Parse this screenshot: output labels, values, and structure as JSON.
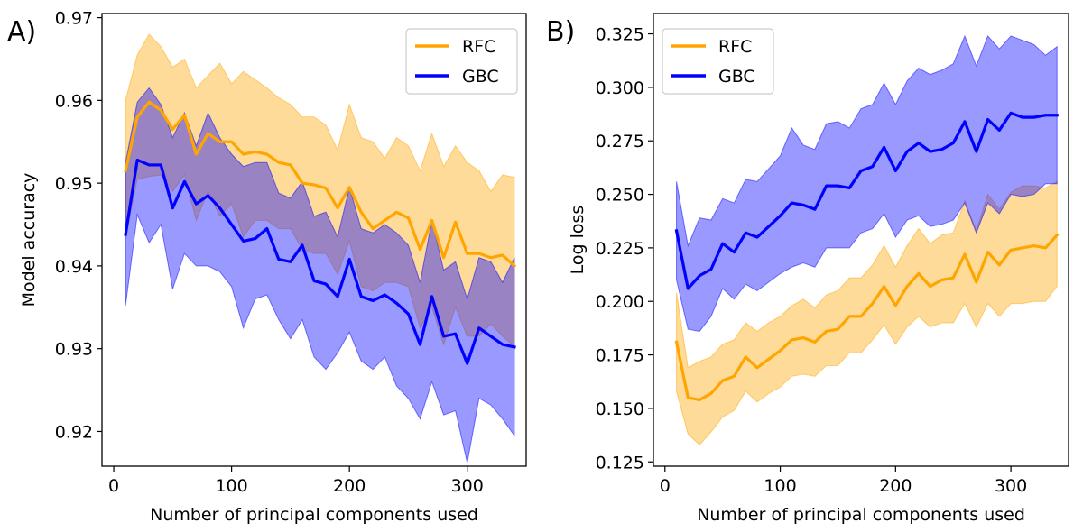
{
  "chart_data": [
    {
      "type": "line",
      "panel_label": "A)",
      "xlabel": "Number of principal components used",
      "ylabel": "Model accuracy",
      "xlim": [
        -10,
        350
      ],
      "ylim": [
        0.9158,
        0.9705
      ],
      "xticks": [
        0,
        100,
        200,
        300
      ],
      "yticks": [
        0.92,
        0.93,
        0.94,
        0.95,
        0.96,
        0.97
      ],
      "ytick_labels": [
        "0.92",
        "0.93",
        "0.94",
        "0.95",
        "0.96",
        "0.97"
      ],
      "grid": false,
      "legend_position": "top-right",
      "x": [
        10,
        20,
        30,
        40,
        50,
        60,
        70,
        80,
        90,
        100,
        110,
        120,
        130,
        140,
        150,
        160,
        170,
        180,
        190,
        200,
        210,
        220,
        230,
        240,
        250,
        260,
        270,
        280,
        290,
        300,
        310,
        320,
        330,
        340
      ],
      "series": [
        {
          "name": "RFC",
          "color": "#FFA500",
          "band_color": "#FFA500",
          "values": [
            0.9515,
            0.958,
            0.9598,
            0.9588,
            0.9565,
            0.9582,
            0.9535,
            0.956,
            0.955,
            0.955,
            0.9535,
            0.9538,
            0.9535,
            0.9525,
            0.9522,
            0.95,
            0.9498,
            0.9494,
            0.947,
            0.9495,
            0.9465,
            0.9445,
            0.9455,
            0.9465,
            0.9458,
            0.942,
            0.9455,
            0.941,
            0.9453,
            0.9415,
            0.9415,
            0.941,
            0.9413,
            0.94
          ],
          "upper": [
            0.96,
            0.9655,
            0.968,
            0.9665,
            0.964,
            0.965,
            0.9615,
            0.963,
            0.9645,
            0.962,
            0.9635,
            0.9625,
            0.9615,
            0.9603,
            0.9595,
            0.958,
            0.958,
            0.957,
            0.954,
            0.9595,
            0.9555,
            0.955,
            0.953,
            0.9555,
            0.9545,
            0.9515,
            0.956,
            0.952,
            0.9545,
            0.9525,
            0.9515,
            0.949,
            0.951,
            0.9507
          ],
          "lower": [
            0.9435,
            0.9505,
            0.9508,
            0.951,
            0.949,
            0.951,
            0.9455,
            0.949,
            0.946,
            0.9475,
            0.9435,
            0.9455,
            0.9455,
            0.9445,
            0.9445,
            0.942,
            0.9415,
            0.9415,
            0.939,
            0.943,
            0.9375,
            0.937,
            0.938,
            0.938,
            0.9375,
            0.9325,
            0.935,
            0.9305,
            0.935,
            0.9315,
            0.9315,
            0.933,
            0.9315,
            0.9303
          ]
        },
        {
          "name": "GBC",
          "color": "#0000FF",
          "band_color": "#0000FF",
          "values": [
            0.9438,
            0.9528,
            0.9522,
            0.9522,
            0.947,
            0.9502,
            0.9475,
            0.9485,
            0.947,
            0.945,
            0.943,
            0.9433,
            0.9445,
            0.9408,
            0.9405,
            0.9425,
            0.9382,
            0.9378,
            0.9363,
            0.9408,
            0.9363,
            0.9358,
            0.9365,
            0.9355,
            0.9342,
            0.9305,
            0.9363,
            0.9315,
            0.9318,
            0.9282,
            0.9325,
            0.9315,
            0.9305,
            0.9302
          ],
          "upper": [
            0.9525,
            0.9598,
            0.9615,
            0.9595,
            0.9555,
            0.9585,
            0.9545,
            0.9585,
            0.9555,
            0.9535,
            0.952,
            0.9525,
            0.9525,
            0.9488,
            0.9482,
            0.9502,
            0.946,
            0.9465,
            0.9435,
            0.9495,
            0.9445,
            0.944,
            0.945,
            0.944,
            0.9425,
            0.938,
            0.9455,
            0.9395,
            0.9405,
            0.936,
            0.941,
            0.9405,
            0.938,
            0.941
          ],
          "lower": [
            0.9352,
            0.9462,
            0.9428,
            0.945,
            0.9372,
            0.9415,
            0.94,
            0.94,
            0.9393,
            0.9375,
            0.9325,
            0.936,
            0.9365,
            0.9335,
            0.9312,
            0.9335,
            0.929,
            0.9275,
            0.9295,
            0.932,
            0.9285,
            0.9275,
            0.929,
            0.9255,
            0.924,
            0.9215,
            0.926,
            0.922,
            0.9225,
            0.9162,
            0.924,
            0.9232,
            0.9215,
            0.9195
          ]
        }
      ]
    },
    {
      "type": "line",
      "panel_label": "B)",
      "xlabel": "Number of principal components used",
      "ylabel": "Log loss",
      "xlim": [
        -10,
        350
      ],
      "ylim": [
        0.123,
        0.3345
      ],
      "xticks": [
        0,
        100,
        200,
        300
      ],
      "yticks": [
        0.125,
        0.15,
        0.175,
        0.2,
        0.225,
        0.25,
        0.275,
        0.3,
        0.325
      ],
      "ytick_labels": [
        "0.125",
        "0.150",
        "0.175",
        "0.200",
        "0.225",
        "0.250",
        "0.275",
        "0.300",
        "0.325"
      ],
      "grid": false,
      "legend_position": "top-left",
      "x": [
        10,
        20,
        30,
        40,
        50,
        60,
        70,
        80,
        90,
        100,
        110,
        120,
        130,
        140,
        150,
        160,
        170,
        180,
        190,
        200,
        210,
        220,
        230,
        240,
        250,
        260,
        270,
        280,
        290,
        300,
        310,
        320,
        330,
        340
      ],
      "series": [
        {
          "name": "RFC",
          "color": "#FFA500",
          "band_color": "#FFA500",
          "values": [
            0.181,
            0.155,
            0.154,
            0.157,
            0.163,
            0.165,
            0.174,
            0.169,
            0.173,
            0.177,
            0.182,
            0.183,
            0.181,
            0.186,
            0.187,
            0.193,
            0.193,
            0.199,
            0.207,
            0.198,
            0.207,
            0.213,
            0.207,
            0.21,
            0.211,
            0.222,
            0.209,
            0.223,
            0.217,
            0.224,
            0.225,
            0.226,
            0.225,
            0.231
          ],
          "upper": [
            0.204,
            0.169,
            0.172,
            0.174,
            0.18,
            0.182,
            0.19,
            0.186,
            0.19,
            0.193,
            0.198,
            0.201,
            0.197,
            0.203,
            0.205,
            0.211,
            0.211,
            0.217,
            0.226,
            0.216,
            0.226,
            0.234,
            0.227,
            0.231,
            0.232,
            0.247,
            0.233,
            0.25,
            0.243,
            0.251,
            0.254,
            0.254,
            0.253,
            0.256
          ],
          "lower": [
            0.158,
            0.138,
            0.133,
            0.139,
            0.146,
            0.149,
            0.158,
            0.153,
            0.157,
            0.16,
            0.165,
            0.166,
            0.165,
            0.17,
            0.17,
            0.176,
            0.176,
            0.182,
            0.189,
            0.18,
            0.188,
            0.193,
            0.188,
            0.19,
            0.19,
            0.199,
            0.188,
            0.199,
            0.193,
            0.199,
            0.199,
            0.2,
            0.2,
            0.207
          ]
        },
        {
          "name": "GBC",
          "color": "#0000FF",
          "band_color": "#0000FF",
          "values": [
            0.233,
            0.206,
            0.212,
            0.215,
            0.227,
            0.223,
            0.232,
            0.23,
            0.235,
            0.24,
            0.246,
            0.245,
            0.243,
            0.254,
            0.254,
            0.253,
            0.261,
            0.263,
            0.272,
            0.261,
            0.27,
            0.274,
            0.27,
            0.271,
            0.274,
            0.284,
            0.27,
            0.285,
            0.28,
            0.288,
            0.286,
            0.286,
            0.287,
            0.287
          ],
          "upper": [
            0.256,
            0.226,
            0.239,
            0.238,
            0.248,
            0.246,
            0.257,
            0.256,
            0.262,
            0.268,
            0.281,
            0.273,
            0.271,
            0.283,
            0.284,
            0.281,
            0.29,
            0.292,
            0.302,
            0.292,
            0.303,
            0.309,
            0.306,
            0.308,
            0.311,
            0.324,
            0.31,
            0.324,
            0.318,
            0.324,
            0.322,
            0.32,
            0.315,
            0.319
          ],
          "lower": [
            0.21,
            0.187,
            0.186,
            0.193,
            0.206,
            0.201,
            0.208,
            0.205,
            0.209,
            0.213,
            0.216,
            0.218,
            0.216,
            0.225,
            0.225,
            0.225,
            0.232,
            0.234,
            0.241,
            0.23,
            0.238,
            0.24,
            0.235,
            0.236,
            0.238,
            0.246,
            0.232,
            0.246,
            0.241,
            0.25,
            0.249,
            0.25,
            0.255,
            0.255
          ]
        }
      ]
    }
  ]
}
